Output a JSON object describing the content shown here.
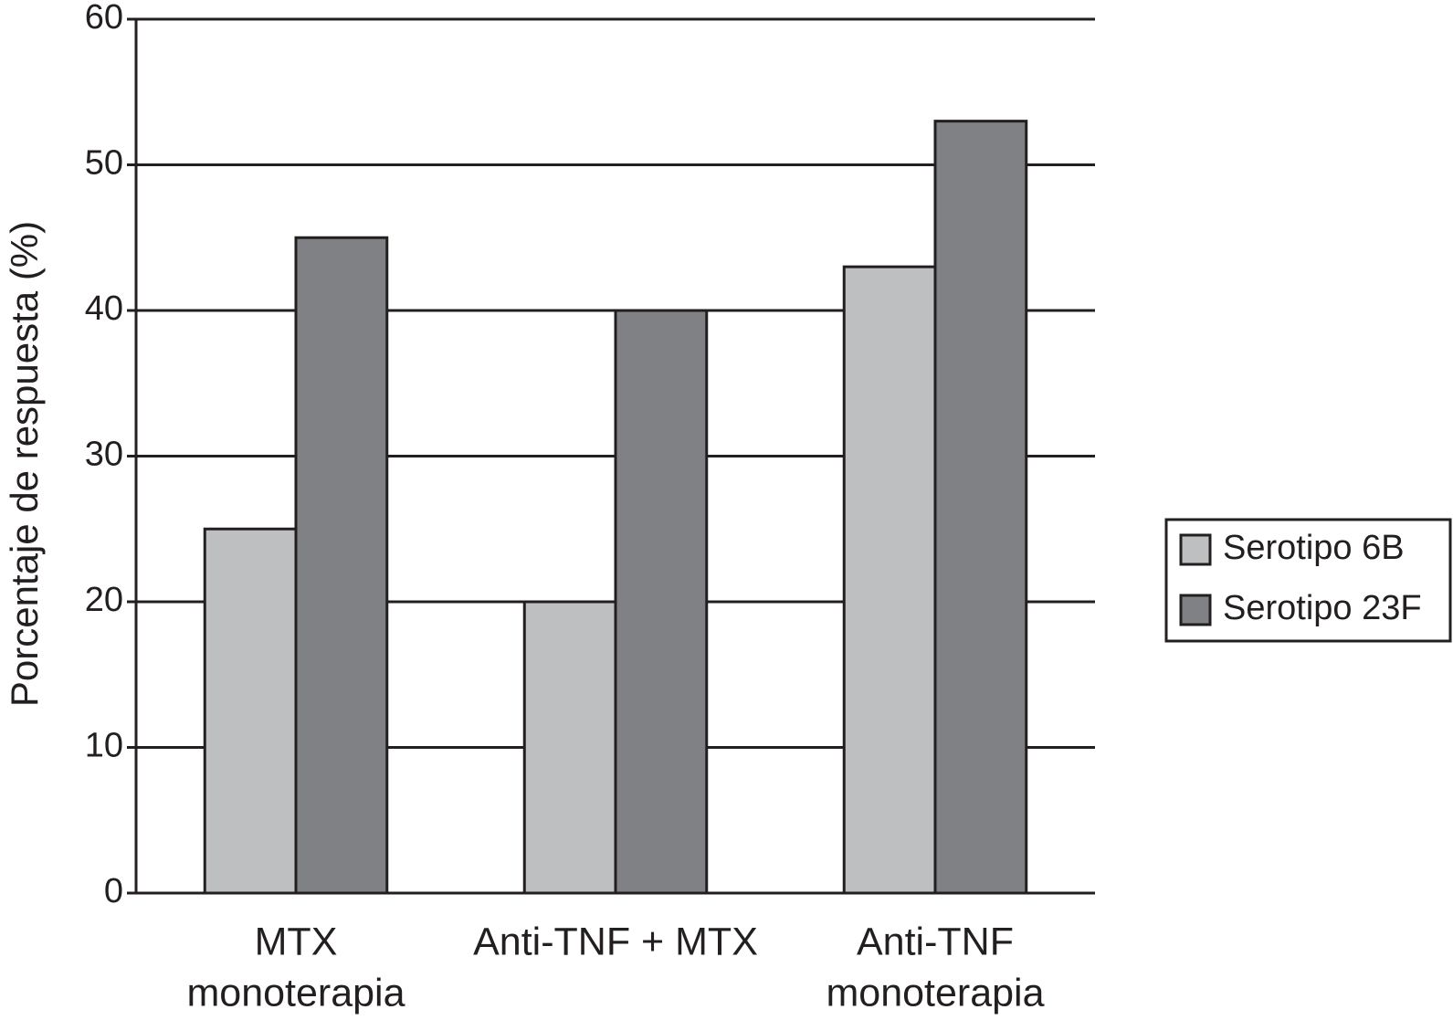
{
  "chart_data": {
    "type": "bar",
    "y_label": "Porcentaje de respuesta (%)",
    "categories": [
      [
        "MTX",
        "monoterapia"
      ],
      [
        "Anti-TNF + MTX"
      ],
      [
        "Anti-TNF",
        "monoterapia"
      ]
    ],
    "series": [
      {
        "name": "Serotipo 6B",
        "color": "#bebfc1",
        "values": [
          25,
          20,
          43
        ]
      },
      {
        "name": "Serotipo 23F",
        "color": "#808184",
        "values": [
          45,
          40,
          53
        ]
      }
    ],
    "ylim": [
      0,
      60
    ],
    "yticks": [
      0,
      10,
      20,
      30,
      40,
      50,
      60
    ],
    "grid": true,
    "legend": "right"
  }
}
